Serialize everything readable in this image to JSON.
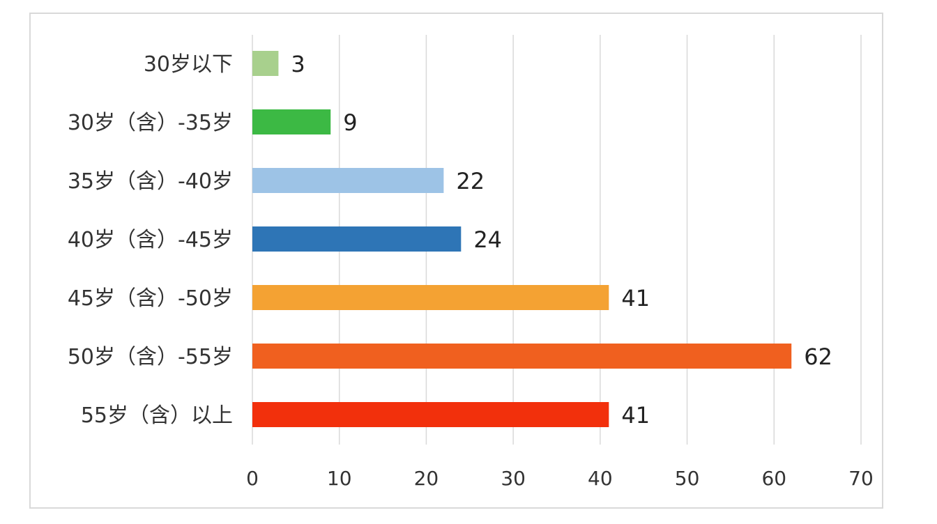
{
  "chart_data": {
    "type": "bar",
    "orientation": "horizontal",
    "title": "",
    "xlabel": "",
    "ylabel": "",
    "categories": [
      "30岁以下",
      "30岁（含）-35岁",
      "35岁（含）-40岁",
      "40岁（含）-45岁",
      "45岁（含）-50岁",
      "50岁（含）-55岁",
      "55岁（含）以上"
    ],
    "values": [
      3,
      9,
      22,
      24,
      41,
      62,
      41
    ],
    "colors": [
      "#a8d08d",
      "#3cb944",
      "#9dc3e6",
      "#2e75b6",
      "#f4a233",
      "#f0601f",
      "#f2300c"
    ],
    "xlim": [
      0,
      70
    ],
    "xticks": [
      0,
      10,
      20,
      30,
      40,
      50,
      60,
      70
    ],
    "grid": "vertical",
    "legend": "none"
  }
}
